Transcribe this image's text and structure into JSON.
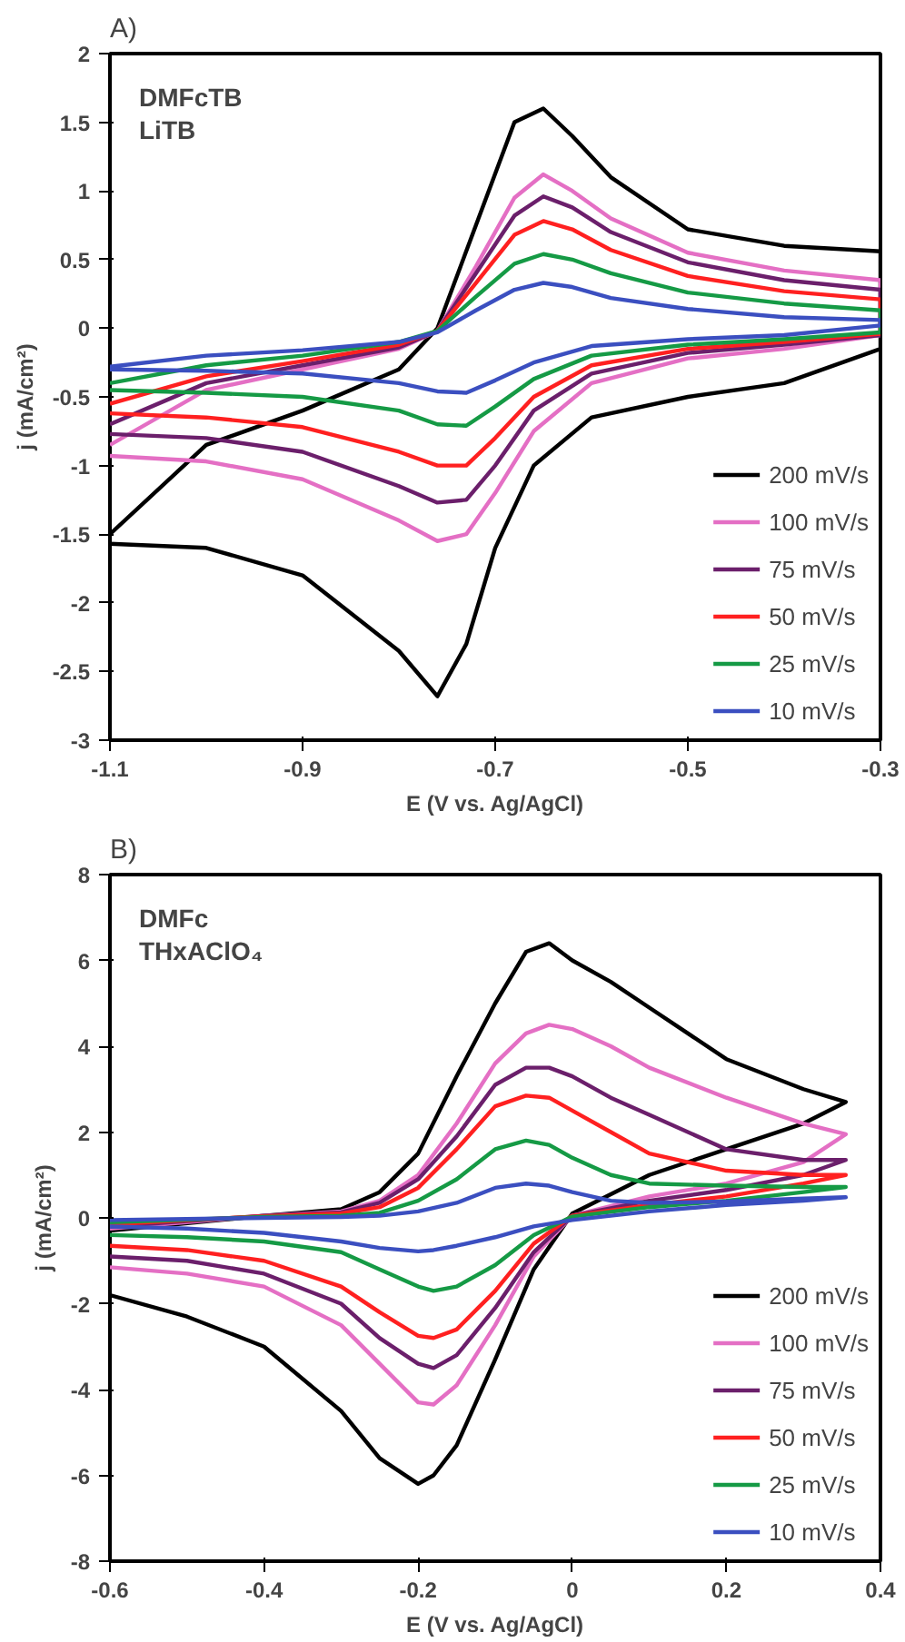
{
  "chart_data": [
    {
      "type": "line",
      "title": "A)",
      "xlabel": "E (V vs. Ag/AgCl)",
      "ylabel": "j (mA/cm²)",
      "annotations": [
        "DMFcTB",
        "LiTB"
      ],
      "x": [
        -1.1,
        -1.0,
        -0.9,
        -0.8,
        -0.76,
        -0.72,
        -0.68,
        -0.65,
        -0.62,
        -0.58,
        -0.5,
        -0.4,
        -0.3,
        -0.3,
        -0.4,
        -0.5,
        -0.6,
        -0.66,
        -0.7,
        -0.73,
        -0.76,
        -0.8,
        -0.9,
        -1.0,
        -1.1
      ],
      "series": [
        {
          "name": "200 mV/s",
          "color": "#000000",
          "values": [
            -1.5,
            -0.85,
            -0.6,
            -0.3,
            0.0,
            0.75,
            1.5,
            1.6,
            1.4,
            1.1,
            0.72,
            0.6,
            0.56,
            -0.15,
            -0.4,
            -0.5,
            -0.65,
            -1.0,
            -1.6,
            -2.3,
            -2.68,
            -2.35,
            -1.8,
            -1.6,
            -1.57
          ]
        },
        {
          "name": "100 mV/s",
          "color": "#e46fc4",
          "values": [
            -0.85,
            -0.45,
            -0.3,
            -0.15,
            -0.02,
            0.45,
            0.95,
            1.12,
            1.0,
            0.8,
            0.55,
            0.42,
            0.35,
            -0.05,
            -0.15,
            -0.22,
            -0.4,
            -0.75,
            -1.2,
            -1.5,
            -1.55,
            -1.4,
            -1.1,
            -0.97,
            -0.93
          ]
        },
        {
          "name": "75 mV/s",
          "color": "#6b1f6b",
          "values": [
            -0.7,
            -0.4,
            -0.27,
            -0.14,
            -0.02,
            0.4,
            0.82,
            0.96,
            0.88,
            0.7,
            0.48,
            0.35,
            0.28,
            -0.05,
            -0.12,
            -0.18,
            -0.33,
            -0.6,
            -1.0,
            -1.25,
            -1.27,
            -1.15,
            -0.9,
            -0.8,
            -0.77
          ]
        },
        {
          "name": "50 mV/s",
          "color": "#ff2020",
          "values": [
            -0.55,
            -0.35,
            -0.24,
            -0.12,
            -0.02,
            0.33,
            0.68,
            0.78,
            0.72,
            0.57,
            0.38,
            0.27,
            0.21,
            -0.04,
            -0.1,
            -0.15,
            -0.27,
            -0.5,
            -0.8,
            -1.0,
            -1.0,
            -0.9,
            -0.72,
            -0.65,
            -0.62
          ]
        },
        {
          "name": "25 mV/s",
          "color": "#159a45",
          "values": [
            -0.4,
            -0.27,
            -0.2,
            -0.1,
            -0.02,
            0.23,
            0.47,
            0.54,
            0.5,
            0.4,
            0.26,
            0.18,
            0.13,
            -0.03,
            -0.08,
            -0.12,
            -0.2,
            -0.37,
            -0.57,
            -0.71,
            -0.7,
            -0.6,
            -0.5,
            -0.47,
            -0.45
          ]
        },
        {
          "name": "10 mV/s",
          "color": "#3b4fc0",
          "values": [
            -0.28,
            -0.2,
            -0.16,
            -0.1,
            -0.03,
            0.13,
            0.28,
            0.33,
            0.3,
            0.22,
            0.14,
            0.08,
            0.06,
            0.02,
            -0.05,
            -0.08,
            -0.13,
            -0.25,
            -0.38,
            -0.47,
            -0.46,
            -0.4,
            -0.33,
            -0.31,
            -0.3
          ]
        }
      ],
      "xlim": [
        -1.1,
        -0.3
      ],
      "xticks": [
        -1.1,
        -0.9,
        -0.7,
        -0.5,
        -0.3
      ],
      "ylim": [
        -3,
        2
      ],
      "yticks": [
        -3,
        -2.5,
        -2,
        -1.5,
        -1,
        -0.5,
        0,
        0.5,
        1,
        1.5,
        2
      ],
      "grid": false,
      "legend": "bottom right",
      "line_style": "solid"
    },
    {
      "type": "line",
      "title": "B)",
      "xlabel": "E (V vs. Ag/AgCl)",
      "ylabel": "j (mA/cm²)",
      "annotations": [
        "DMFc",
        "THxAClO₄"
      ],
      "x": [
        -0.6,
        -0.4,
        -0.3,
        -0.25,
        -0.2,
        -0.15,
        -0.1,
        -0.06,
        -0.03,
        0.0,
        0.05,
        0.1,
        0.2,
        0.3,
        0.355,
        0.355,
        0.3,
        0.2,
        0.1,
        0.0,
        -0.05,
        -0.1,
        -0.15,
        -0.18,
        -0.2,
        -0.25,
        -0.3,
        -0.4,
        -0.5,
        -0.6
      ],
      "series": [
        {
          "name": "200 mV/s",
          "color": "#000000",
          "values": [
            -0.3,
            0.05,
            0.2,
            0.6,
            1.5,
            3.3,
            5.0,
            6.2,
            6.4,
            6.0,
            5.5,
            4.9,
            3.7,
            3.0,
            2.7,
            2.7,
            2.2,
            1.6,
            1.0,
            0.1,
            -1.2,
            -3.3,
            -5.3,
            -6.0,
            -6.2,
            -5.6,
            -4.5,
            -3.0,
            -2.3,
            -1.8
          ]
        },
        {
          "name": "100 mV/s",
          "color": "#e46fc4",
          "values": [
            -0.25,
            0.05,
            0.15,
            0.4,
            1.0,
            2.2,
            3.6,
            4.3,
            4.5,
            4.4,
            4.0,
            3.5,
            2.8,
            2.2,
            1.95,
            1.95,
            1.3,
            0.8,
            0.5,
            0.05,
            -0.9,
            -2.5,
            -3.9,
            -4.35,
            -4.3,
            -3.4,
            -2.5,
            -1.6,
            -1.3,
            -1.15
          ]
        },
        {
          "name": "75 mV/s",
          "color": "#6b1f6b",
          "values": [
            -0.2,
            0.05,
            0.13,
            0.35,
            0.9,
            1.9,
            3.1,
            3.5,
            3.5,
            3.3,
            2.8,
            2.4,
            1.6,
            1.35,
            1.35,
            1.35,
            1.0,
            0.65,
            0.4,
            0.05,
            -0.8,
            -2.1,
            -3.2,
            -3.5,
            -3.4,
            -2.8,
            -2.0,
            -1.3,
            -1.0,
            -0.9
          ]
        },
        {
          "name": "50 mV/s",
          "color": "#ff2020",
          "values": [
            -0.15,
            0.04,
            0.1,
            0.25,
            0.7,
            1.6,
            2.6,
            2.85,
            2.8,
            2.5,
            2.0,
            1.5,
            1.1,
            1.0,
            1.0,
            1.0,
            0.8,
            0.5,
            0.3,
            0.05,
            -0.6,
            -1.7,
            -2.6,
            -2.8,
            -2.75,
            -2.2,
            -1.6,
            -1.0,
            -0.75,
            -0.65
          ]
        },
        {
          "name": "25 mV/s",
          "color": "#159a45",
          "values": [
            -0.1,
            0.02,
            0.05,
            0.12,
            0.4,
            0.9,
            1.6,
            1.8,
            1.7,
            1.4,
            1.0,
            0.8,
            0.75,
            0.72,
            0.72,
            0.72,
            0.6,
            0.4,
            0.25,
            0.03,
            -0.4,
            -1.1,
            -1.6,
            -1.7,
            -1.6,
            -1.2,
            -0.8,
            -0.55,
            -0.45,
            -0.4
          ]
        },
        {
          "name": "10 mV/s",
          "color": "#3b4fc0",
          "values": [
            -0.05,
            0.0,
            0.02,
            0.05,
            0.15,
            0.35,
            0.7,
            0.8,
            0.75,
            0.6,
            0.4,
            0.35,
            0.38,
            0.45,
            0.48,
            0.48,
            0.4,
            0.3,
            0.15,
            -0.05,
            -0.2,
            -0.45,
            -0.65,
            -0.75,
            -0.78,
            -0.7,
            -0.55,
            -0.35,
            -0.25,
            -0.2
          ]
        }
      ],
      "xlim": [
        -0.6,
        0.4
      ],
      "xticks": [
        -0.6,
        -0.4,
        -0.2,
        0,
        0.2,
        0.4
      ],
      "ylim": [
        -8,
        8
      ],
      "yticks": [
        -8,
        -6,
        -4,
        -2,
        0,
        2,
        4,
        6,
        8
      ],
      "grid": false,
      "legend": "bottom right",
      "line_style": "solid"
    }
  ]
}
